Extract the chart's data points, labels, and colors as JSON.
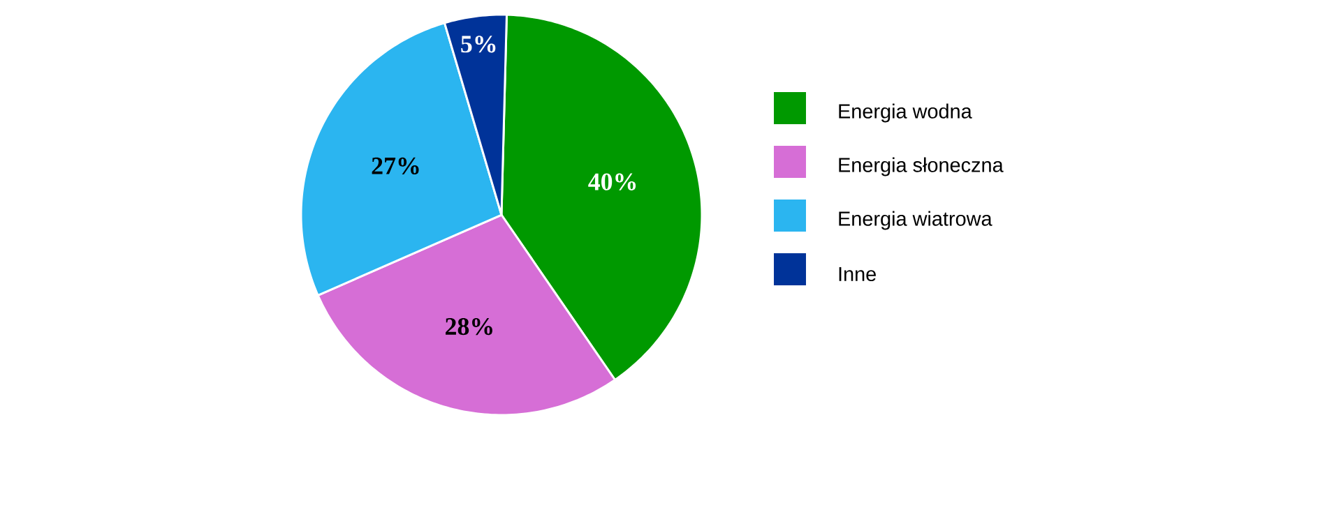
{
  "chart_data": {
    "type": "pie",
    "categories": [
      "Energia wodna",
      "Energia słoneczna",
      "Energia wiatrowa",
      "Inne"
    ],
    "values": [
      40,
      28,
      27,
      5
    ],
    "colors": [
      "#009900",
      "#d66ed6",
      "#2bb5f0",
      "#003399"
    ],
    "value_labels": [
      "40%",
      "28%",
      "27%",
      "5%"
    ],
    "legend": "right"
  }
}
